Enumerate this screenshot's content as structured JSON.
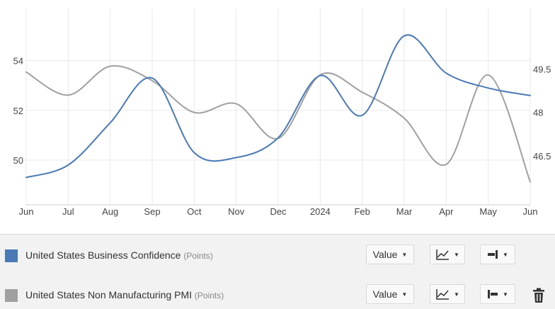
{
  "chart_data": {
    "type": "line",
    "x": [
      "2023-06",
      "2023-07",
      "2023-08",
      "2023-09",
      "2023-10",
      "2023-11",
      "2023-12",
      "2024-01",
      "2024-02",
      "2024-03",
      "2024-04",
      "2024-05",
      "2024-06"
    ],
    "x_tick_labels": [
      "Jun",
      "Jul",
      "Aug",
      "Sep",
      "Oct",
      "Nov",
      "Dec",
      "2024",
      "Feb",
      "Mar",
      "Apr",
      "May",
      "Jun"
    ],
    "left_axis": {
      "ticks": [
        50,
        52,
        54
      ],
      "range": [
        48.2,
        56.1
      ]
    },
    "right_axis": {
      "ticks": [
        "46.5",
        "48",
        "49.5"
      ],
      "range": [
        44.8,
        51.6
      ]
    },
    "grid": true,
    "series": [
      {
        "name": "United States Business Confidence",
        "unit": "(Points)",
        "axis": "left",
        "color": "#4a7ab5",
        "values": [
          49.3,
          49.8,
          51.5,
          53.3,
          50.3,
          50.1,
          50.9,
          53.4,
          51.8,
          55.0,
          53.5,
          52.9,
          52.6
        ]
      },
      {
        "name": "United States Non Manufacturing PMI",
        "unit": "(Points)",
        "axis": "right",
        "color": "#a0a0a0",
        "values": [
          49.4,
          48.6,
          49.6,
          49.1,
          48.0,
          48.3,
          47.1,
          49.3,
          48.7,
          47.8,
          46.2,
          49.3,
          45.6
        ]
      }
    ]
  },
  "legend": {
    "rows": [
      {
        "name": "United States Business Confidence",
        "unit": "(Points)",
        "color": "#4a7ab5",
        "value_label": "Value",
        "chart_type_icon": "line-chart-icon",
        "axis_icon": "axis-right-icon"
      },
      {
        "name": "United States Non Manufacturing PMI",
        "unit": "(Points)",
        "color": "#a0a0a0",
        "value_label": "Value",
        "chart_type_icon": "line-chart-icon",
        "axis_icon": "axis-left-icon",
        "delete_icon": "trash-icon"
      }
    ]
  }
}
